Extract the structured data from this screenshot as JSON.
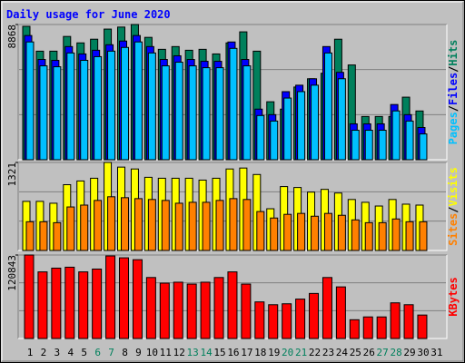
{
  "chart_data": [
    {
      "type": "bar",
      "title": "Daily usage for June 2020",
      "legend_separator": "/",
      "ylim": [
        0,
        8868
      ],
      "yticks": [
        8868
      ],
      "series": [
        {
          "name": "Hits",
          "color": "#00805c",
          "values": [
            8748,
            7119,
            7119,
            8084,
            7662,
            7903,
            8567,
            8700,
            8868,
            8024,
            7240,
            7420,
            7179,
            7240,
            6938,
            7662,
            8386,
            7119,
            3801,
            3318,
            4766,
            5309,
            5671,
            7903,
            6214,
            2835,
            2835,
            2835,
            4102,
            3197,
            null
          ]
        },
        {
          "name": "Files",
          "color": "#0000ff",
          "values": [
            8145,
            6576,
            6516,
            7421,
            6938,
            7179,
            7541,
            7783,
            8145,
            7421,
            6576,
            6817,
            6576,
            6455,
            6455,
            7722,
            6576,
            3318,
            2956,
            4464,
            4887,
            5309,
            7421,
            5731,
            2353,
            2353,
            2353,
            3620,
            2956,
            2112,
            null
          ]
        },
        {
          "name": "Pages",
          "color": "#00c0ff",
          "values": [
            7725,
            6156,
            6096,
            7001,
            6518,
            6759,
            7121,
            7363,
            7725,
            7001,
            6156,
            6397,
            6156,
            6035,
            6035,
            7302,
            6156,
            2898,
            2536,
            4044,
            4467,
            4889,
            7001,
            5311,
            1933,
            1933,
            1933,
            3200,
            2536,
            1692,
            null
          ]
        }
      ]
    },
    {
      "type": "bar",
      "legend_separator": "/",
      "ylim": [
        0,
        1321
      ],
      "yticks": [
        1321
      ],
      "series": [
        {
          "name": "Visits",
          "color": "#ffff00",
          "values": [
            737,
            737,
            709,
            987,
            1043,
            1084,
            1321,
            1251,
            1223,
            1098,
            1084,
            1084,
            1084,
            1056,
            1084,
            1223,
            1237,
            1140,
            626,
            959,
            945,
            876,
            917,
            862,
            765,
            723,
            667,
            765,
            695,
            681,
            null
          ]
        },
        {
          "name": "Sites",
          "color": "#ff8000",
          "values": [
            431,
            431,
            417,
            653,
            681,
            751,
            806,
            792,
            778,
            765,
            751,
            709,
            723,
            723,
            751,
            778,
            765,
            584,
            487,
            542,
            556,
            514,
            556,
            528,
            459,
            417,
            417,
            473,
            431,
            431,
            null
          ]
        }
      ]
    },
    {
      "type": "bar",
      "ylim": [
        0,
        120843
      ],
      "yticks": [
        120843
      ],
      "categories": [
        "1",
        "2",
        "3",
        "4",
        "5",
        "6",
        "7",
        "8",
        "9",
        "10",
        "11",
        "12",
        "13",
        "14",
        "15",
        "16",
        "17",
        "18",
        "19",
        "20",
        "21",
        "22",
        "23",
        "24",
        "25",
        "26",
        "27",
        "28",
        "29",
        "30",
        "31"
      ],
      "category_colors": [
        "#000000",
        "#000000",
        "#000000",
        "#000000",
        "#000000",
        "#00805c",
        "#00805c",
        "#000000",
        "#000000",
        "#000000",
        "#000000",
        "#000000",
        "#00805c",
        "#00805c",
        "#000000",
        "#000000",
        "#000000",
        "#000000",
        "#000000",
        "#00805c",
        "#00805c",
        "#000000",
        "#000000",
        "#000000",
        "#000000",
        "#000000",
        "#00805c",
        "#00805c",
        "#000000",
        "#000000",
        "#000000"
      ],
      "series": [
        {
          "name": "KBytes",
          "color": "#ff0000",
          "values": [
            120843,
            96418,
            101850,
            103208,
            96418,
            100492,
            119500,
            116788,
            114072,
            88270,
            80122,
            81480,
            78764,
            81480,
            88270,
            96418,
            78764,
            52962,
            48888,
            50246,
            57036,
            65184,
            88270,
            74690,
            27160,
            31234,
            31234,
            51604,
            48888,
            33950,
            null
          ]
        }
      ]
    }
  ]
}
